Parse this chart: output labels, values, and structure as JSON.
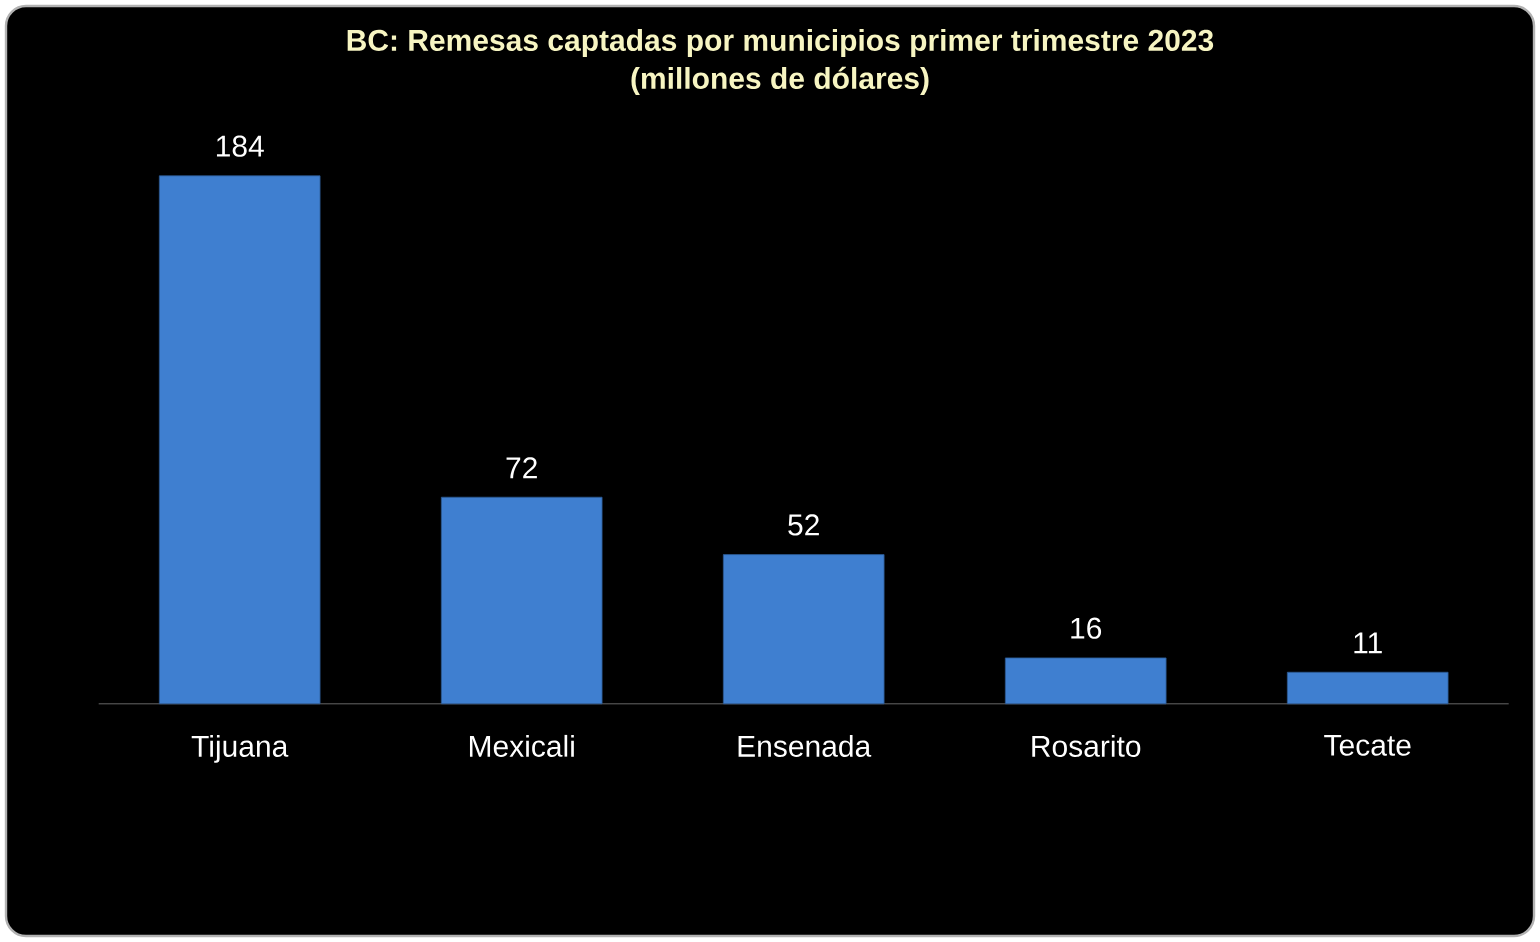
{
  "chart_data": {
    "type": "bar",
    "title": "BC:  Remesas captadas por municipios primer trimestre 2023\n(millones de dólares)",
    "categories": [
      "Tijuana",
      "Mexicali",
      "Ensenada",
      "Rosarito",
      "Tecate"
    ],
    "values": [
      184,
      72,
      52,
      16,
      11
    ],
    "color": "#3f7fd0",
    "data_labels": true
  }
}
